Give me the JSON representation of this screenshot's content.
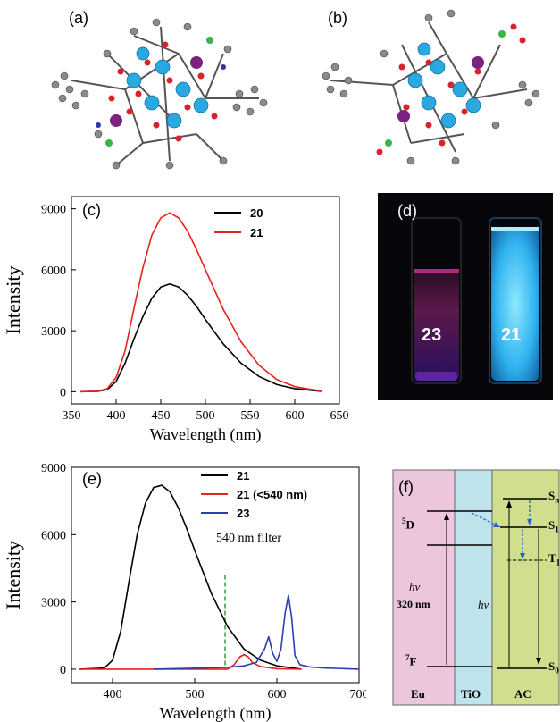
{
  "panels": {
    "a": {
      "label": "(a)"
    },
    "b": {
      "label": "(b)"
    },
    "c": {
      "label": "(c)"
    },
    "d": {
      "label": "(d)",
      "vial_left": "23",
      "vial_right": "21"
    },
    "e": {
      "label": "(e)",
      "annotation": "540 nm filter"
    },
    "f": {
      "label": "(f)"
    }
  },
  "chart_data": [
    {
      "panel": "c",
      "type": "line",
      "xlabel": "Wavelength (nm)",
      "ylabel": "Intensity",
      "xlim": [
        350,
        650
      ],
      "ylim": [
        -600,
        9600
      ],
      "xticks": [
        350,
        400,
        450,
        500,
        550,
        600,
        650
      ],
      "yticks": [
        0,
        3000,
        6000,
        9000
      ],
      "legend": "top-right",
      "series": [
        {
          "name": "20",
          "color": "#000000",
          "x": [
            360,
            380,
            390,
            400,
            410,
            420,
            430,
            440,
            450,
            460,
            470,
            480,
            490,
            500,
            520,
            540,
            560,
            580,
            600,
            630
          ],
          "y": [
            0,
            20,
            100,
            500,
            1400,
            2600,
            3700,
            4600,
            5150,
            5300,
            5150,
            4750,
            4200,
            3550,
            2350,
            1400,
            750,
            350,
            150,
            20
          ]
        },
        {
          "name": "21",
          "color": "#e8221f",
          "x": [
            360,
            380,
            390,
            400,
            410,
            420,
            430,
            440,
            450,
            460,
            470,
            480,
            490,
            500,
            520,
            540,
            560,
            580,
            600,
            630
          ],
          "y": [
            0,
            20,
            150,
            700,
            2000,
            4100,
            6100,
            7700,
            8550,
            8800,
            8550,
            7900,
            7000,
            6000,
            4050,
            2450,
            1300,
            600,
            250,
            30
          ]
        }
      ]
    },
    {
      "panel": "e",
      "type": "line",
      "xlabel": "Wavelength (nm)",
      "ylabel": "Intensity",
      "xlim": [
        350,
        700
      ],
      "ylim": [
        -600,
        9000
      ],
      "xticks": [
        400,
        500,
        600,
        700
      ],
      "yticks": [
        0,
        3000,
        6000,
        9000
      ],
      "legend": "top-right",
      "filter_line_x": 537,
      "series": [
        {
          "name": "21",
          "color": "#000000",
          "x": [
            360,
            390,
            400,
            410,
            420,
            430,
            440,
            450,
            460,
            470,
            480,
            490,
            500,
            520,
            540,
            560,
            580,
            600,
            630
          ],
          "y": [
            0,
            50,
            400,
            1700,
            3900,
            6000,
            7400,
            8100,
            8200,
            7900,
            7200,
            6300,
            5300,
            3400,
            1900,
            900,
            400,
            150,
            0
          ]
        },
        {
          "name": "21 (<540 nm)",
          "color": "#e8221f",
          "x": [
            360,
            540,
            548,
            555,
            560,
            565,
            570,
            580,
            600,
            630
          ],
          "y": [
            0,
            0,
            200,
            550,
            650,
            550,
            300,
            120,
            20,
            0
          ]
        },
        {
          "name": "23",
          "color": "#2b3fb0",
          "x": [
            450,
            540,
            560,
            575,
            585,
            590,
            595,
            600,
            605,
            610,
            614,
            618,
            622,
            628,
            640,
            660,
            700
          ],
          "y": [
            0,
            80,
            150,
            300,
            900,
            1450,
            700,
            350,
            900,
            2500,
            3300,
            2300,
            600,
            200,
            100,
            50,
            0
          ]
        }
      ]
    }
  ],
  "diagram_f": {
    "columns": [
      "Eu",
      "TiO",
      "AC"
    ],
    "levels_left": [
      "5D",
      "7F"
    ],
    "levels_right": [
      "Sn",
      "S1",
      "T1",
      "S0"
    ],
    "hv_left": "hv",
    "excitation": "320 nm",
    "hv_right": "hv",
    "colors": {
      "eu": "#ecc6dd",
      "tio": "#bfe3ea",
      "ac": "#cfdf8d"
    }
  }
}
